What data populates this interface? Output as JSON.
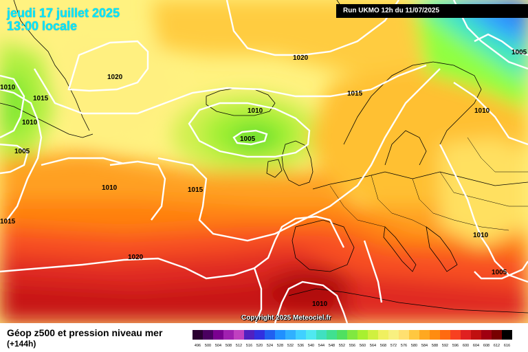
{
  "header": {
    "date_line": "jeudi 17 juillet 2025",
    "time_line": "13:00 locale",
    "run_info": "Run UKMO 12h du 11/07/2025"
  },
  "copyright": "Copyright 2025 Meteociel.fr",
  "footer": {
    "title": "Géop z500 et pression niveau mer",
    "subtitle": "(+144h)"
  },
  "isobar_labels": [
    {
      "id": "l1",
      "text": "1020"
    },
    {
      "id": "l2",
      "text": "1020"
    },
    {
      "id": "l3",
      "text": "1015"
    },
    {
      "id": "l4",
      "text": "1010"
    },
    {
      "id": "l5",
      "text": "1010"
    },
    {
      "id": "l6",
      "text": "1010"
    },
    {
      "id": "l7",
      "text": "1005"
    },
    {
      "id": "l8",
      "text": "1005"
    },
    {
      "id": "l9",
      "text": "1010"
    },
    {
      "id": "l10",
      "text": "1015"
    },
    {
      "id": "l11",
      "text": "1015"
    },
    {
      "id": "l12",
      "text": "1015"
    },
    {
      "id": "l13",
      "text": "1020"
    },
    {
      "id": "l14",
      "text": "1010"
    },
    {
      "id": "l15",
      "text": "1010"
    },
    {
      "id": "l16",
      "text": "1005"
    },
    {
      "id": "l17",
      "text": "1005"
    },
    {
      "id": "l18",
      "text": "1010"
    },
    {
      "id": "l19",
      "text": "1015"
    }
  ],
  "color_scale": {
    "labels": [
      "496",
      "500",
      "504",
      "508",
      "512",
      "516",
      "520",
      "524",
      "528",
      "532",
      "536",
      "540",
      "544",
      "548",
      "552",
      "556",
      "560",
      "564",
      "568",
      "572",
      "576",
      "580",
      "584",
      "588",
      "592",
      "596",
      "600",
      "604",
      "608",
      "612",
      "616"
    ],
    "colors": [
      "#2a0030",
      "#4a0060",
      "#7a0090",
      "#a020b0",
      "#c040c0",
      "#5020c0",
      "#3030e0",
      "#2060f0",
      "#2090ff",
      "#30b0ff",
      "#40d0ff",
      "#50e8f0",
      "#40e0c0",
      "#40e090",
      "#50e060",
      "#80e840",
      "#a8f030",
      "#d0f040",
      "#f0f060",
      "#f8f080",
      "#ffe070",
      "#ffc840",
      "#ffa820",
      "#ff8c10",
      "#ff6a10",
      "#f84020",
      "#e02020",
      "#c01010",
      "#a00010",
      "#780000",
      "#000000"
    ]
  }
}
